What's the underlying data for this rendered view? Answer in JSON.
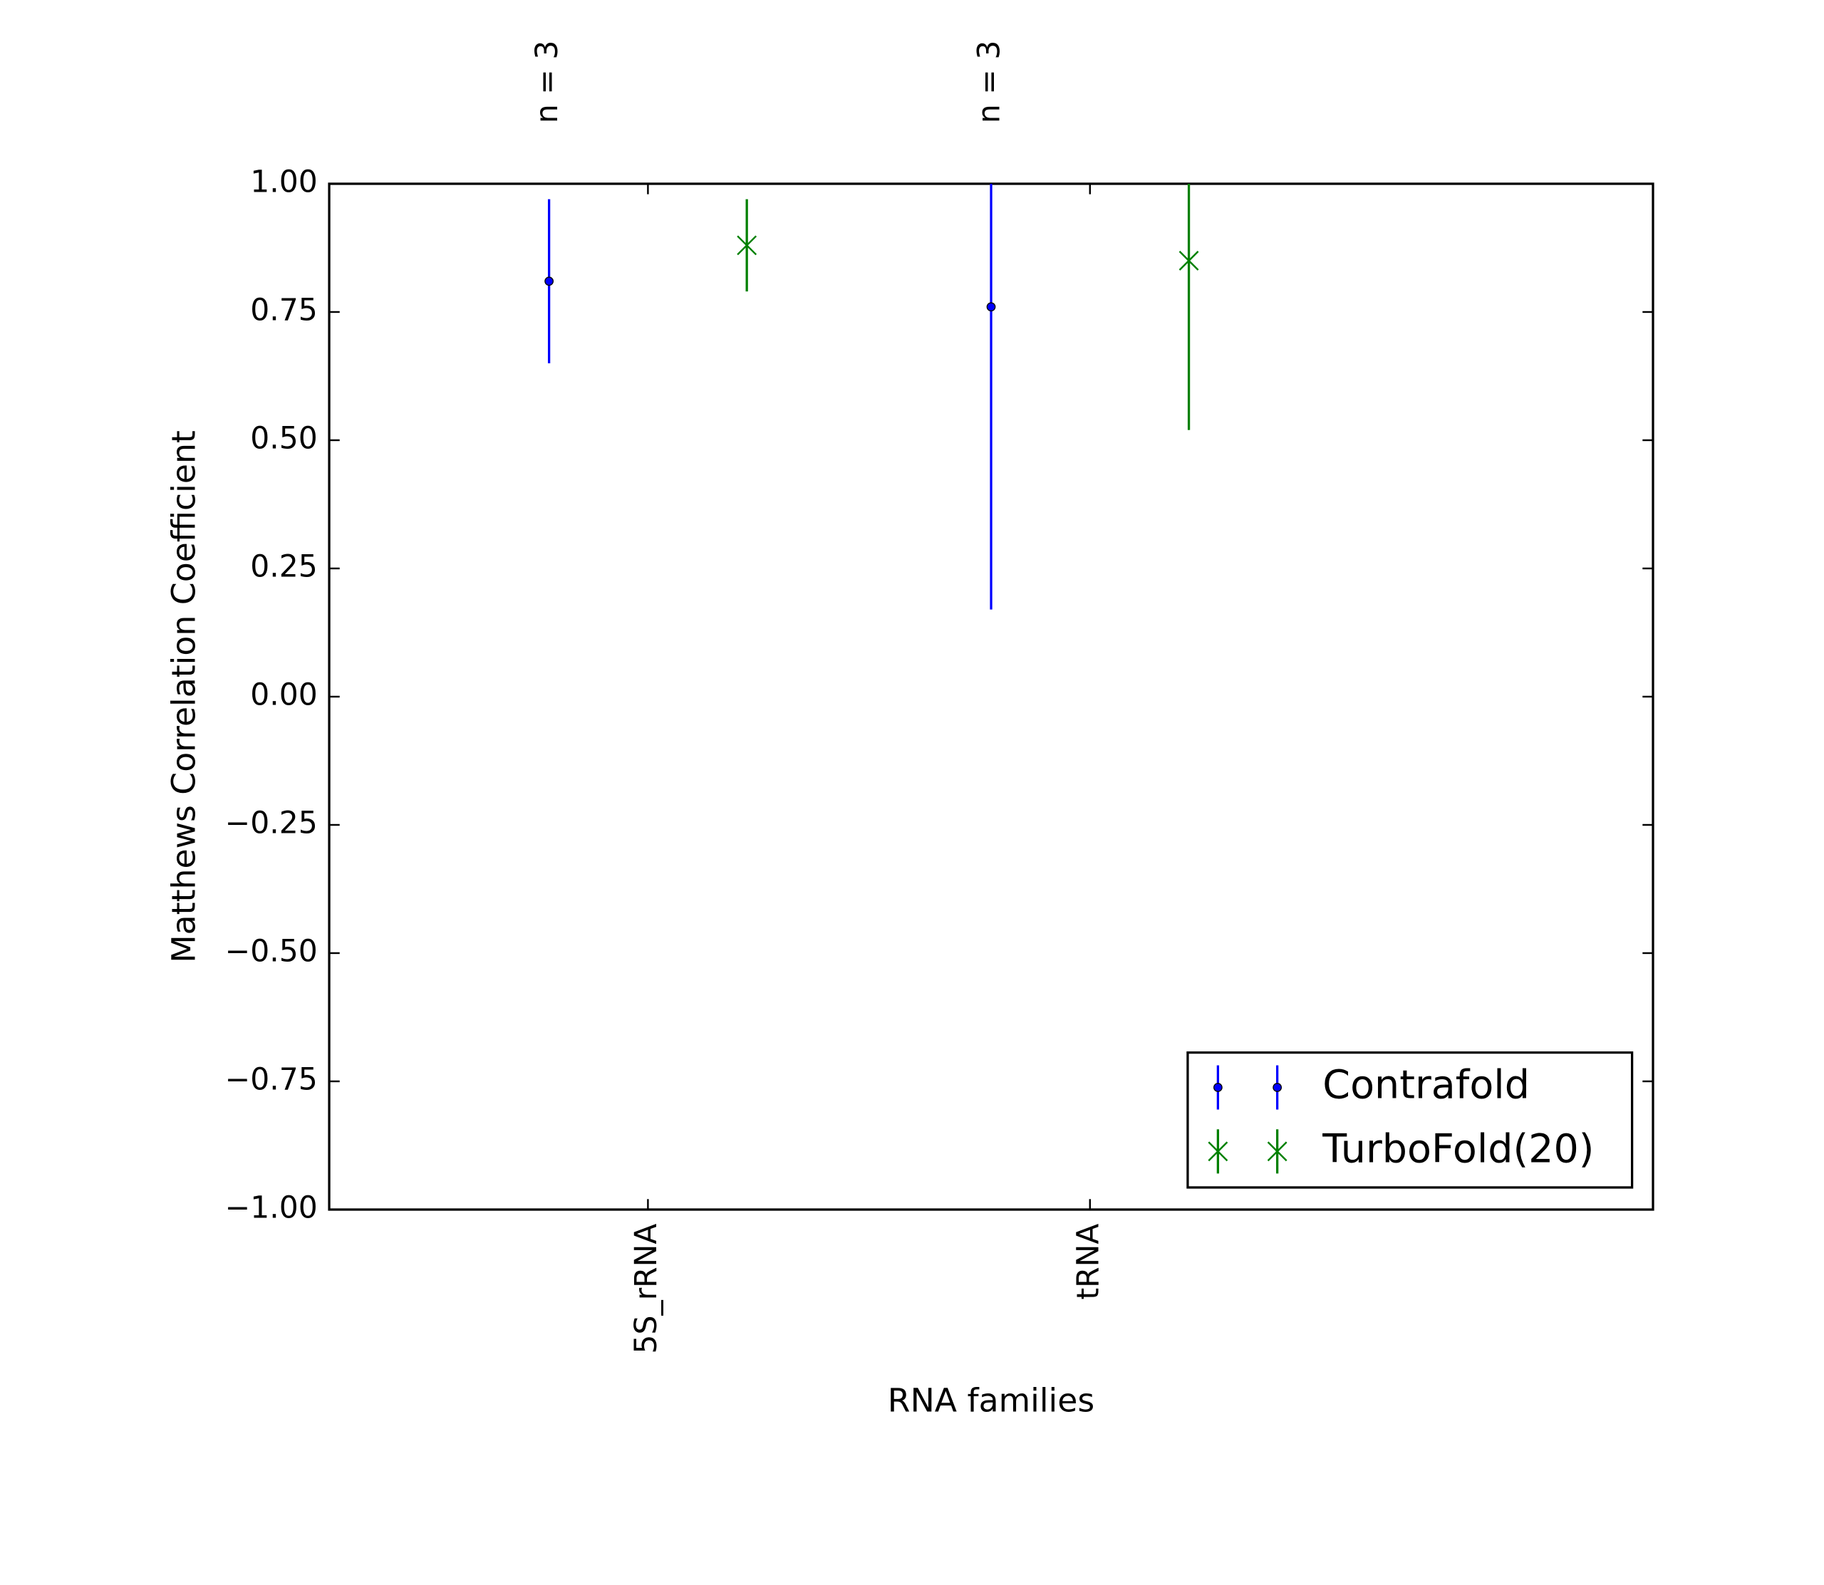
{
  "chart_data": {
    "type": "errorbar",
    "ylabel": "Matthews Correlation Coefficient",
    "xlabel": "RNA families",
    "categories": [
      "5S_rRNA",
      "tRNA"
    ],
    "annotations": [
      "n = 3",
      "n = 3"
    ],
    "series": [
      {
        "name": "Contrafold",
        "color": "#0000ff",
        "marker": "dot",
        "values": [
          0.81,
          0.76
        ],
        "errors": [
          0.16,
          0.59
        ]
      },
      {
        "name": "TurboFold(20)",
        "color": "#008000",
        "marker": "x",
        "values": [
          0.88,
          0.85
        ],
        "errors": [
          0.09,
          0.33
        ]
      }
    ],
    "ylim": [
      -1,
      1
    ],
    "yticks": [
      {
        "value": -1,
        "label": "−1.00"
      },
      {
        "value": -0.75,
        "label": "−0.75"
      },
      {
        "value": -0.5,
        "label": "−0.50"
      },
      {
        "value": -0.25,
        "label": "−0.25"
      },
      {
        "value": 0,
        "label": "0.00"
      },
      {
        "value": 0.25,
        "label": "0.25"
      },
      {
        "value": 0.5,
        "label": "0.50"
      },
      {
        "value": 0.75,
        "label": "0.75"
      },
      {
        "value": 1,
        "label": "1.00"
      }
    ],
    "legend": "lower right"
  }
}
